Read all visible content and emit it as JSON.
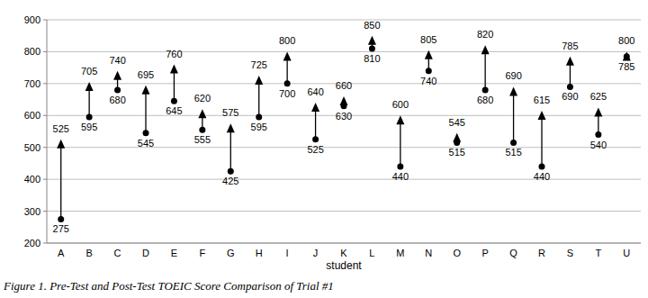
{
  "chart_data": {
    "type": "arrow",
    "title": "Figure 1. Pre-Test and Post-Test TOEIC Score Comparison of Trial #1",
    "x_label": "student",
    "categories": [
      "A",
      "B",
      "C",
      "D",
      "E",
      "F",
      "G",
      "H",
      "I",
      "J",
      "K",
      "L",
      "M",
      "N",
      "O",
      "P",
      "Q",
      "R",
      "S",
      "T",
      "U"
    ],
    "series": [
      {
        "values": [
          275,
          595,
          680,
          545,
          645,
          555,
          425,
          595,
          700,
          525,
          630,
          810,
          440,
          740,
          515,
          680,
          515,
          440,
          690,
          540,
          785
        ],
        "color": "#000000",
        "marker": "circle"
      },
      {
        "values": [
          525,
          705,
          740,
          695,
          760,
          620,
          575,
          725,
          800,
          640,
          660,
          850,
          600,
          805,
          545,
          820,
          690,
          615,
          785,
          625,
          800
        ],
        "color": "#000000",
        "marker": "triangle"
      }
    ],
    "ylim": [
      200,
      900
    ],
    "yticks": [
      200,
      300,
      400,
      500,
      600,
      700,
      800,
      900
    ],
    "grid": true,
    "data_labels": true
  }
}
